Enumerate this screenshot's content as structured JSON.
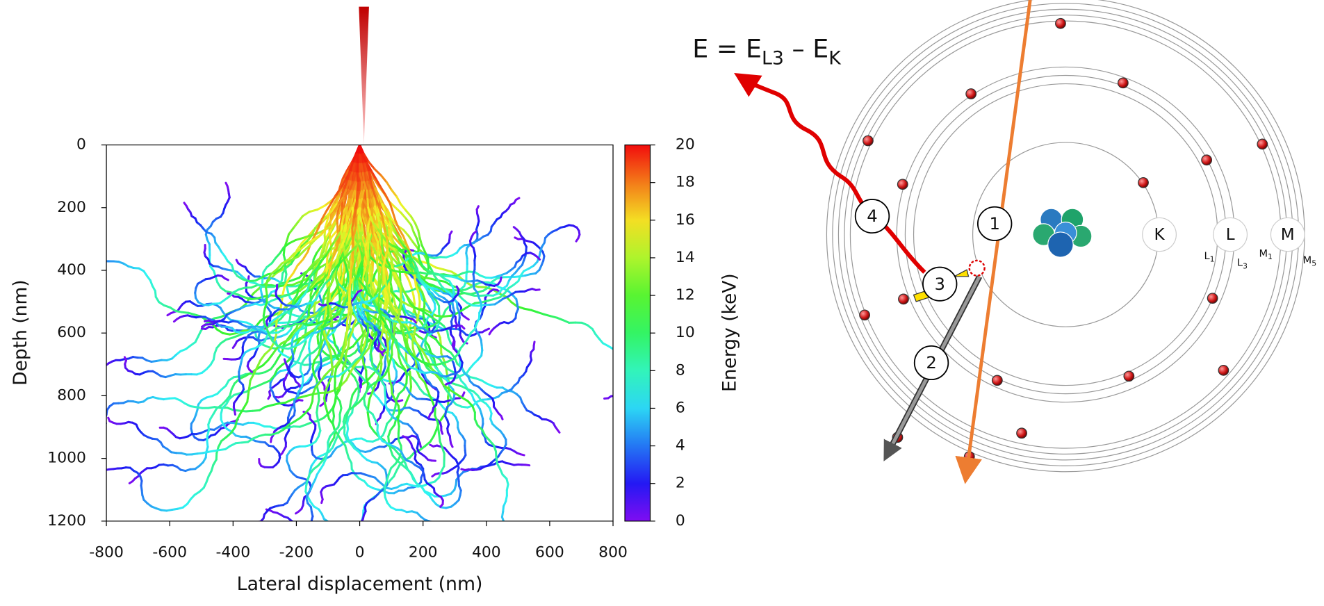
{
  "chart_data": {
    "type": "scatter",
    "x_label": "Lateral displacement (nm)",
    "y_label": "Depth (nm)",
    "colorbar_label": "Energy (keV)",
    "xlim": [
      -800,
      800
    ],
    "xticks": [
      -800,
      -600,
      -400,
      -200,
      0,
      200,
      400,
      600,
      800
    ],
    "ylim": [
      0,
      1200
    ],
    "yticks": [
      0,
      200,
      400,
      600,
      800,
      1000,
      1200
    ],
    "y_inverted": true,
    "clim": [
      0,
      20
    ],
    "cticks": [
      0,
      2,
      4,
      6,
      8,
      10,
      12,
      14,
      16,
      18,
      20
    ],
    "colormap": "rainbow"
  },
  "diagram": {
    "equation": {
      "a": "E = E",
      "a_sub": "L3",
      "b": " – E",
      "b_sub": "K"
    },
    "steps": [
      "1",
      "2",
      "3",
      "4"
    ],
    "shells": [
      "K",
      "L",
      "M"
    ],
    "shell_sublabels": [
      {
        "main": "L",
        "sub": "1"
      },
      {
        "main": "L",
        "sub": "3"
      },
      {
        "main": "M",
        "sub": "1"
      },
      {
        "main": "M",
        "sub": "5"
      }
    ]
  }
}
